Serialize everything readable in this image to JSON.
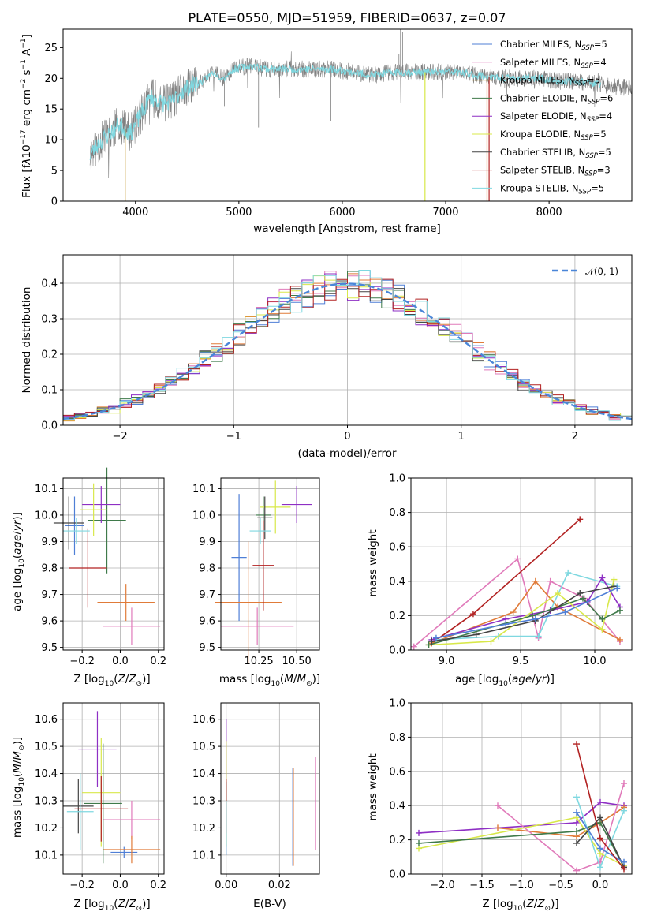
{
  "figure_title": "PLATE=0550, MJD=51959, FIBERID=0637, z=0.07",
  "colors": {
    "Chabrier MILES": "#4f7fd6",
    "Salpeter MILES": "#e07aba",
    "Kroupa MILES": "#b8860b",
    "Chabrier ELODIE": "#3f7a4a",
    "Salpeter ELODIE": "#8e2fc4",
    "Kroupa ELODIE": "#d8e84a",
    "Chabrier STELIB": "#444444",
    "Salpeter STELIB": "#b22222",
    "Kroupa STELIB": "#7fd8e0",
    "orange": "#e07b39",
    "gauss": "#4a86d8"
  },
  "chart_data": [
    {
      "type": "line",
      "title": "PLATE=0550, MJD=51959, FIBERID=0637, z=0.07",
      "xlabel": "wavelength [Angstrom, rest frame]",
      "ylabel": "Flux [f_λ 10^-17 erg cm^-2 s^-1 A^-1]",
      "xlim": [
        3300,
        8800
      ],
      "ylim": [
        0,
        28
      ],
      "xticks": [
        4000,
        5000,
        6000,
        7000,
        8000
      ],
      "yticks": [
        0,
        5,
        10,
        15,
        20,
        25
      ],
      "legend_position": "upper-right",
      "legend": [
        {
          "pre": "Chabrier MILES, N",
          "post": "=5",
          "color": "#4f7fd6"
        },
        {
          "pre": "Salpeter MILES, N",
          "post": "=4",
          "color": "#e07aba"
        },
        {
          "pre": "Kroupa MILES, N",
          "post": "=5",
          "color": "#b8860b"
        },
        {
          "pre": "Chabrier ELODIE, N",
          "post": "=6",
          "color": "#3f7a4a"
        },
        {
          "pre": "Salpeter ELODIE, N",
          "post": "=4",
          "color": "#8e2fc4"
        },
        {
          "pre": "Kroupa ELODIE, N",
          "post": "=5",
          "color": "#d8e84a"
        },
        {
          "pre": "Chabrier STELIB, N",
          "post": "=5",
          "color": "#444444"
        },
        {
          "pre": "Salpeter STELIB, N",
          "post": "=3",
          "color": "#b22222"
        },
        {
          "pre": "Kroupa STELIB, N",
          "post": "=5",
          "color": "#7fd8e0"
        }
      ],
      "legend_sub": "SSP",
      "spectrum_envelope": {
        "x": [
          3560,
          3650,
          3750,
          3850,
          3950,
          4050,
          4150,
          4250,
          4350,
          4450,
          4550,
          4650,
          4750,
          4850,
          4950,
          5100,
          5300,
          5500,
          5700,
          5900,
          6100,
          6300,
          6500,
          6700,
          6900,
          7100,
          7300,
          7500,
          7700,
          7900,
          8100,
          8300,
          8500,
          8700
        ],
        "y": [
          7.5,
          9.5,
          11,
          12.5,
          11,
          14,
          17,
          16,
          16,
          18,
          19,
          19.5,
          21,
          20,
          21.5,
          22,
          21.5,
          21.5,
          21.5,
          21.5,
          21,
          20.5,
          21,
          21,
          21,
          21,
          20.5,
          20,
          20,
          20,
          19.5,
          19.5,
          19,
          18.5
        ]
      },
      "dropouts": [
        {
          "x": 3900,
          "color": "#b8860b"
        },
        {
          "x": 6800,
          "color": "#d8e84a"
        },
        {
          "x": 7400,
          "color": "#e07b39"
        },
        {
          "x": 7420,
          "color": "#b22222"
        }
      ]
    },
    {
      "type": "line",
      "xlabel": "(data-model)/error",
      "ylabel": "Normed distribution",
      "xlim": [
        -2.5,
        2.5
      ],
      "ylim": [
        0,
        0.48
      ],
      "xticks": [
        -2,
        -1,
        0,
        1,
        2
      ],
      "yticks": [
        0.0,
        0.1,
        0.2,
        0.3,
        0.4
      ],
      "grid": true,
      "legend_position": "upper-right",
      "gaussian_label": "𝒩(0, 1)",
      "bin_width": 0.1,
      "series_count": 9
    },
    {
      "type": "scatter",
      "xlabel": "Z [log10(Z/Z⊙)]",
      "ylabel": "age  [log10(age/yr)]",
      "xlim": [
        -0.3,
        0.23
      ],
      "ylim": [
        9.49,
        10.14
      ],
      "xticks": [
        -0.2,
        0.0,
        0.2
      ],
      "yticks": [
        9.5,
        9.6,
        9.7,
        9.8,
        9.9,
        10.0,
        10.1
      ],
      "grid": true,
      "points": [
        {
          "x": -0.24,
          "y": 9.96,
          "xerr": 0.05,
          "yerr": 0.11,
          "color": "#4f7fd6"
        },
        {
          "x": 0.06,
          "y": 9.58,
          "xerr": 0.15,
          "yerr": 0.07,
          "color": "#e07aba"
        },
        {
          "x": 0.03,
          "y": 9.67,
          "xerr": 0.15,
          "yerr": 0.07,
          "color": "#e07b39"
        },
        {
          "x": -0.07,
          "y": 9.98,
          "xerr": 0.1,
          "yerr": 0.2,
          "color": "#3f7a4a"
        },
        {
          "x": -0.1,
          "y": 10.04,
          "xerr": 0.1,
          "yerr": 0.07,
          "color": "#8e2fc4"
        },
        {
          "x": -0.14,
          "y": 10.02,
          "xerr": 0.07,
          "yerr": 0.1,
          "color": "#d8e84a"
        },
        {
          "x": -0.27,
          "y": 9.97,
          "xerr": 0.08,
          "yerr": 0.1,
          "color": "#444444"
        },
        {
          "x": -0.17,
          "y": 9.8,
          "xerr": 0.1,
          "yerr": 0.15,
          "color": "#b22222"
        },
        {
          "x": -0.23,
          "y": 9.94,
          "xerr": 0.07,
          "yerr": 0.05,
          "color": "#7fd8e0"
        }
      ]
    },
    {
      "type": "scatter",
      "xlabel": "mass [log10(M/M⊙)]",
      "ylabel": "",
      "xlim": [
        10.0,
        10.65
      ],
      "ylim": [
        9.49,
        10.14
      ],
      "xticks": [
        10.25,
        10.5
      ],
      "yticks": [
        9.5,
        9.6,
        9.7,
        9.8,
        9.9,
        10.0,
        10.1
      ],
      "grid": true,
      "points": [
        {
          "x": 10.12,
          "y": 9.84,
          "xerr": 0.05,
          "yerr": 0.24,
          "color": "#4f7fd6"
        },
        {
          "x": 10.24,
          "y": 9.58,
          "xerr": 0.24,
          "yerr": 0.07,
          "color": "#e07aba"
        },
        {
          "x": 10.18,
          "y": 9.67,
          "xerr": 0.22,
          "yerr": 0.23,
          "color": "#e07b39"
        },
        {
          "x": 10.28,
          "y": 10.0,
          "xerr": 0.05,
          "yerr": 0.07,
          "color": "#3f7a4a"
        },
        {
          "x": 10.5,
          "y": 10.04,
          "xerr": 0.1,
          "yerr": 0.07,
          "color": "#8e2fc4"
        },
        {
          "x": 10.36,
          "y": 10.03,
          "xerr": 0.1,
          "yerr": 0.1,
          "color": "#d8e84a"
        },
        {
          "x": 10.29,
          "y": 9.99,
          "xerr": 0.05,
          "yerr": 0.08,
          "color": "#444444"
        },
        {
          "x": 10.28,
          "y": 9.81,
          "xerr": 0.07,
          "yerr": 0.17,
          "color": "#b22222"
        },
        {
          "x": 10.26,
          "y": 9.94,
          "xerr": 0.07,
          "yerr": 0.05,
          "color": "#7fd8e0"
        }
      ]
    },
    {
      "type": "line",
      "xlabel": "age  [log10(age/yr)]",
      "ylabel": "mass weight",
      "xlim": [
        8.76,
        10.25
      ],
      "ylim": [
        0,
        1.0
      ],
      "xticks": [
        9.0,
        9.5,
        10.0
      ],
      "yticks": [
        0.0,
        0.2,
        0.4,
        0.6,
        0.8,
        1.0
      ],
      "grid": true,
      "series": [
        {
          "color": "#e07aba",
          "x": [
            8.78,
            9.48,
            9.62,
            9.7,
            9.93,
            10.17
          ],
          "y": [
            0.02,
            0.53,
            0.07,
            0.4,
            0.3,
            0.05
          ]
        },
        {
          "color": "#b22222",
          "x": [
            8.9,
            9.18,
            9.9
          ],
          "y": [
            0.04,
            0.21,
            0.76
          ]
        },
        {
          "color": "#e07b39",
          "x": [
            8.9,
            9.45,
            9.6,
            9.75,
            10.17
          ],
          "y": [
            0.04,
            0.22,
            0.4,
            0.25,
            0.06
          ]
        },
        {
          "color": "#7fd8e0",
          "x": [
            8.93,
            9.35,
            9.62,
            9.82,
            10.15
          ],
          "y": [
            0.06,
            0.08,
            0.08,
            0.45,
            0.37
          ]
        },
        {
          "color": "#8e2fc4",
          "x": [
            8.9,
            9.4,
            9.7,
            9.95,
            10.05,
            10.17
          ],
          "y": [
            0.06,
            0.18,
            0.23,
            0.28,
            0.42,
            0.25
          ]
        },
        {
          "color": "#d8e84a",
          "x": [
            8.88,
            9.3,
            9.75,
            10.05,
            10.13
          ],
          "y": [
            0.03,
            0.05,
            0.33,
            0.12,
            0.41
          ]
        },
        {
          "color": "#3f7a4a",
          "x": [
            8.88,
            9.58,
            9.92,
            10.05,
            10.17
          ],
          "y": [
            0.03,
            0.2,
            0.3,
            0.18,
            0.23
          ]
        },
        {
          "color": "#444444",
          "x": [
            8.9,
            9.2,
            9.6,
            9.9,
            10.13
          ],
          "y": [
            0.05,
            0.09,
            0.17,
            0.33,
            0.37
          ]
        },
        {
          "color": "#4f7fd6",
          "x": [
            8.93,
            9.4,
            9.6,
            9.8,
            10.15
          ],
          "y": [
            0.07,
            0.15,
            0.18,
            0.22,
            0.36
          ]
        }
      ]
    },
    {
      "type": "scatter",
      "xlabel": "Z [log10(Z/Z⊙)]",
      "ylabel": "mass [log10(M/M⊙)]",
      "xlim": [
        -0.3,
        0.23
      ],
      "ylim": [
        10.03,
        10.66
      ],
      "xticks": [
        -0.2,
        0.0,
        0.2
      ],
      "yticks": [
        10.1,
        10.2,
        10.3,
        10.4,
        10.5,
        10.6
      ],
      "grid": true,
      "points": [
        {
          "x": 0.02,
          "y": 10.11,
          "xerr": 0.07,
          "yerr": 0.02,
          "color": "#4f7fd6"
        },
        {
          "x": 0.06,
          "y": 10.23,
          "xerr": 0.15,
          "yerr": 0.07,
          "color": "#e07aba"
        },
        {
          "x": 0.06,
          "y": 10.12,
          "xerr": 0.15,
          "yerr": 0.05,
          "color": "#e07b39"
        },
        {
          "x": -0.09,
          "y": 10.29,
          "xerr": 0.1,
          "yerr": 0.22,
          "color": "#3f7a4a"
        },
        {
          "x": -0.12,
          "y": 10.49,
          "xerr": 0.1,
          "yerr": 0.14,
          "color": "#8e2fc4"
        },
        {
          "x": -0.1,
          "y": 10.33,
          "xerr": 0.1,
          "yerr": 0.2,
          "color": "#d8e84a"
        },
        {
          "x": -0.22,
          "y": 10.28,
          "xerr": 0.08,
          "yerr": 0.1,
          "color": "#444444"
        },
        {
          "x": -0.1,
          "y": 10.27,
          "xerr": 0.14,
          "yerr": 0.12,
          "color": "#b22222"
        },
        {
          "x": -0.21,
          "y": 10.26,
          "xerr": 0.07,
          "yerr": 0.14,
          "color": "#7fd8e0"
        }
      ]
    },
    {
      "type": "scatter",
      "xlabel": "E(B-V)",
      "ylabel": "",
      "xlim": [
        -0.002,
        0.035
      ],
      "ylim": [
        10.03,
        10.66
      ],
      "xticks": [
        0.0,
        0.02
      ],
      "yticks": [
        10.1,
        10.2,
        10.3,
        10.4,
        10.5,
        10.6
      ],
      "grid": true,
      "points": [
        {
          "x": 0.0,
          "y": 10.35,
          "xerr": 0,
          "yerr": 0.25,
          "color": "#8e2fc4"
        },
        {
          "x": 0.0,
          "y": 10.33,
          "xerr": 0,
          "yerr": 0.19,
          "color": "#d8e84a"
        },
        {
          "x": 0.0,
          "y": 10.25,
          "xerr": 0,
          "yerr": 0.12,
          "color": "#3f7a4a"
        },
        {
          "x": 0.0,
          "y": 10.28,
          "xerr": 0,
          "yerr": 0.1,
          "color": "#b22222"
        },
        {
          "x": 0.0,
          "y": 10.2,
          "xerr": 0,
          "yerr": 0.1,
          "color": "#7fd8e0"
        },
        {
          "x": 0.025,
          "y": 10.24,
          "xerr": 0,
          "yerr": 0.18,
          "color": "#4f7fd6"
        },
        {
          "x": 0.0252,
          "y": 10.24,
          "xerr": 0,
          "yerr": 0.18,
          "color": "#e07b39"
        },
        {
          "x": 0.0335,
          "y": 10.29,
          "xerr": 0,
          "yerr": 0.17,
          "color": "#e07aba"
        }
      ]
    },
    {
      "type": "line",
      "xlabel": "Z [log10(Z/Z⊙)]",
      "ylabel": "mass weight",
      "xlim": [
        -2.4,
        0.4
      ],
      "ylim": [
        0,
        1.0
      ],
      "xticks": [
        -2.0,
        -1.5,
        -1.0,
        -0.5,
        0.0
      ],
      "yticks": [
        0.0,
        0.2,
        0.4,
        0.6,
        0.8,
        1.0
      ],
      "grid": true,
      "series": [
        {
          "color": "#8e2fc4",
          "x": [
            -2.3,
            -0.3,
            0.0,
            0.3
          ],
          "y": [
            0.24,
            0.3,
            0.42,
            0.4
          ]
        },
        {
          "color": "#e07b39",
          "x": [
            -1.3,
            -0.3,
            0.0,
            0.3
          ],
          "y": [
            0.27,
            0.22,
            0.3,
            0.39
          ]
        },
        {
          "color": "#e07aba",
          "x": [
            -1.3,
            -0.3,
            0.0,
            0.3
          ],
          "y": [
            0.4,
            0.02,
            0.07,
            0.53
          ]
        },
        {
          "color": "#d8e84a",
          "x": [
            -2.3,
            -0.3,
            0.0,
            0.3
          ],
          "y": [
            0.15,
            0.33,
            0.12,
            0.05
          ]
        },
        {
          "color": "#3f7a4a",
          "x": [
            -2.3,
            -0.3,
            0.0,
            0.3
          ],
          "y": [
            0.18,
            0.25,
            0.3,
            0.04
          ]
        },
        {
          "color": "#7fd8e0",
          "x": [
            -0.3,
            0.0,
            0.3
          ],
          "y": [
            0.45,
            0.04,
            0.37
          ]
        },
        {
          "color": "#444444",
          "x": [
            -0.3,
            0.0,
            0.3
          ],
          "y": [
            0.18,
            0.33,
            0.04
          ]
        },
        {
          "color": "#4f7fd6",
          "x": [
            -0.3,
            0.0,
            0.3
          ],
          "y": [
            0.36,
            0.15,
            0.07
          ]
        },
        {
          "color": "#b22222",
          "x": [
            -0.3,
            0.0,
            0.3
          ],
          "y": [
            0.76,
            0.21,
            0.03
          ]
        }
      ]
    }
  ]
}
